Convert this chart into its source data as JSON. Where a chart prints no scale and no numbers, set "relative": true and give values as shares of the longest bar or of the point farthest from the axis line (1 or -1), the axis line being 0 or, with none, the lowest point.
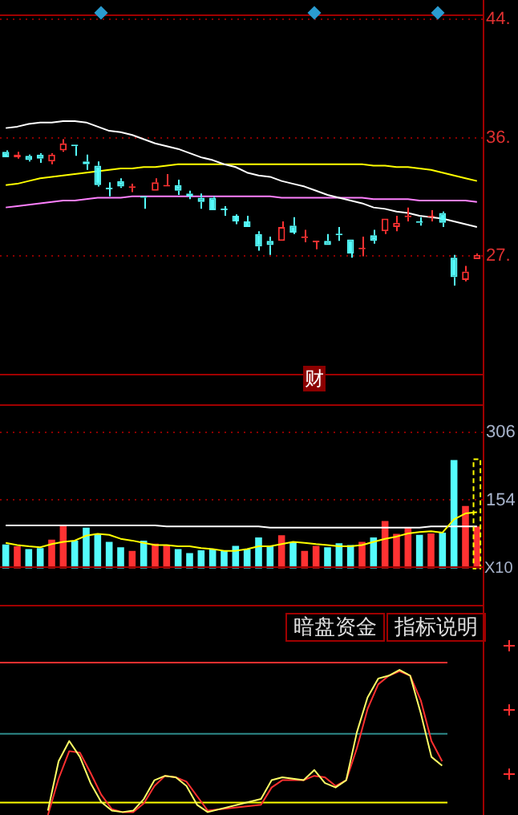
{
  "chart_data": [
    {
      "type": "candlestick",
      "categories": [
        null,
        null,
        null,
        null,
        null,
        null,
        null,
        null,
        null,
        null,
        null,
        null,
        null,
        null,
        null,
        null,
        null,
        null,
        null,
        null,
        null,
        null,
        null,
        null,
        null,
        null,
        null,
        null,
        null,
        null,
        null,
        null,
        null,
        null,
        null,
        null,
        null,
        null,
        null,
        null,
        null,
        null
      ],
      "ohlc": [
        [
          35.0,
          35.1,
          34.6,
          34.6
        ],
        [
          34.6,
          35.0,
          34.5,
          34.8
        ],
        [
          34.7,
          34.8,
          34.3,
          34.4
        ],
        [
          34.8,
          34.9,
          34.2,
          34.5
        ],
        [
          34.3,
          34.9,
          34.1,
          34.8
        ],
        [
          35.1,
          35.9,
          35.0,
          35.6
        ],
        [
          35.5,
          35.5,
          34.7,
          35.4
        ],
        [
          34.3,
          34.8,
          33.7,
          34.1
        ],
        [
          34.0,
          34.3,
          32.5,
          32.6
        ],
        [
          32.4,
          32.8,
          31.8,
          32.3
        ],
        [
          32.9,
          33.1,
          32.4,
          32.5
        ],
        [
          32.4,
          32.7,
          32.1,
          32.5
        ],
        [
          31.8,
          31.8,
          30.9,
          31.7
        ],
        [
          32.2,
          33.1,
          32.2,
          32.8
        ],
        [
          32.5,
          33.4,
          32.5,
          32.6
        ],
        [
          32.6,
          33.0,
          31.9,
          32.2
        ],
        [
          32.0,
          32.2,
          31.6,
          31.8
        ],
        [
          31.7,
          32.0,
          30.9,
          31.4
        ],
        [
          31.7,
          31.8,
          30.8,
          30.8
        ],
        [
          30.9,
          31.1,
          30.4,
          30.8
        ],
        [
          30.4,
          30.5,
          29.8,
          30.0
        ],
        [
          30.0,
          30.4,
          29.6,
          29.6
        ],
        [
          29.1,
          29.3,
          27.9,
          28.2
        ],
        [
          28.6,
          28.9,
          27.6,
          28.3
        ],
        [
          28.6,
          30.0,
          28.6,
          29.6
        ],
        [
          29.7,
          30.3,
          29.1,
          29.2
        ],
        [
          28.8,
          29.4,
          28.5,
          28.9
        ],
        [
          28.5,
          28.6,
          28.0,
          28.6
        ],
        [
          28.6,
          29.1,
          28.3,
          28.3
        ],
        [
          29.1,
          29.6,
          28.6,
          29.0
        ],
        [
          28.7,
          28.7,
          27.4,
          27.7
        ],
        [
          28.0,
          28.9,
          27.5,
          28.1
        ],
        [
          29.0,
          29.4,
          28.4,
          28.6
        ],
        [
          29.3,
          30.2,
          29.1,
          30.2
        ],
        [
          29.6,
          30.4,
          29.3,
          29.9
        ],
        [
          30.3,
          31.0,
          30.0,
          30.4
        ],
        [
          30.0,
          30.3,
          29.7,
          29.9
        ],
        [
          30.3,
          30.8,
          30.0,
          30.4
        ],
        [
          30.6,
          30.7,
          29.6,
          29.9
        ],
        [
          27.4,
          27.6,
          25.4,
          26.0
        ],
        [
          25.8,
          26.8,
          25.7,
          26.4
        ],
        [
          27.3,
          27.7,
          27.3,
          27.6
        ]
      ],
      "colors": [
        "#54fcfc",
        "#ff3232",
        "#54fcfc",
        "#54fcfc",
        "#ff3232",
        "#ff3232",
        "#54fcfc",
        "#54fcfc",
        "#54fcfc",
        "#54fcfc",
        "#54fcfc",
        "#ff3232",
        "#54fcfc",
        "#ff3232",
        "#ff3232",
        "#54fcfc",
        "#54fcfc",
        "#54fcfc",
        "#54fcfc",
        "#54fcfc",
        "#54fcfc",
        "#54fcfc",
        "#54fcfc",
        "#54fcfc",
        "#ff3232",
        "#54fcfc",
        "#ff3232",
        "#ff3232",
        "#54fcfc",
        "#54fcfc",
        "#54fcfc",
        "#ff3232",
        "#54fcfc",
        "#ff3232",
        "#ff3232",
        "#ff3232",
        "#54fcfc",
        "#ff3232",
        "#54fcfc",
        "#54fcfc",
        "#ff3232",
        "#ff3232"
      ],
      "series": [
        {
          "type": "line",
          "color": "#ffffff",
          "values": [
            36.7,
            36.8,
            37.0,
            37.1,
            37.1,
            37.2,
            37.2,
            37.1,
            36.8,
            36.5,
            36.4,
            36.2,
            35.9,
            35.6,
            35.4,
            35.2,
            34.9,
            34.6,
            34.4,
            34.1,
            33.9,
            33.5,
            33.3,
            33.2,
            32.9,
            32.7,
            32.5,
            32.2,
            31.9,
            31.7,
            31.5,
            31.3,
            31.0,
            30.9,
            30.7,
            30.6,
            30.4,
            30.3,
            30.2,
            30.0,
            29.8,
            29.6
          ]
        },
        {
          "type": "line",
          "color": "#ffff00",
          "values": [
            32.6,
            32.7,
            32.9,
            33.1,
            33.2,
            33.3,
            33.4,
            33.5,
            33.6,
            33.7,
            33.8,
            33.8,
            33.9,
            33.9,
            34.0,
            34.1,
            34.1,
            34.1,
            34.1,
            34.1,
            34.1,
            34.1,
            34.1,
            34.1,
            34.1,
            34.1,
            34.1,
            34.1,
            34.1,
            34.1,
            34.1,
            34.1,
            34.0,
            34.0,
            33.9,
            33.9,
            33.8,
            33.7,
            33.5,
            33.3,
            33.1,
            32.9
          ]
        },
        {
          "type": "line",
          "color": "#ff80ff",
          "values": [
            31.0,
            31.1,
            31.2,
            31.3,
            31.4,
            31.5,
            31.5,
            31.6,
            31.7,
            31.7,
            31.7,
            31.8,
            31.8,
            31.8,
            31.8,
            31.8,
            31.8,
            31.8,
            31.8,
            31.8,
            31.8,
            31.8,
            31.8,
            31.8,
            31.7,
            31.7,
            31.7,
            31.7,
            31.7,
            31.7,
            31.7,
            31.7,
            31.6,
            31.6,
            31.6,
            31.6,
            31.5,
            31.5,
            31.5,
            31.5,
            31.5,
            31.4
          ]
        }
      ],
      "ylim": [
        18.9,
        44.9
      ],
      "yticks": [
        {
          "value": 44.5,
          "label": "44."
        },
        {
          "value": 36.0,
          "label": "36."
        },
        {
          "value": 27.5,
          "label": "27."
        }
      ],
      "grid": "y",
      "tick_labels": "y",
      "annotations": [
        "财"
      ]
    },
    {
      "type": "bar",
      "categories": [
        null,
        null,
        null,
        null,
        null,
        null,
        null,
        null,
        null,
        null,
        null,
        null,
        null,
        null,
        null,
        null,
        null,
        null,
        null,
        null,
        null,
        null,
        null,
        null,
        null,
        null,
        null,
        null,
        null,
        null,
        null,
        null,
        null,
        null,
        null,
        null,
        null,
        null,
        null,
        null,
        null,
        null
      ],
      "series": [
        {
          "type": "bar",
          "colors": [
            "#54fcfc",
            "#ff3232",
            "#54fcfc",
            "#54fcfc",
            "#ff3232",
            "#ff3232",
            "#54fcfc",
            "#54fcfc",
            "#54fcfc",
            "#54fcfc",
            "#54fcfc",
            "#ff3232",
            "#54fcfc",
            "#ff3232",
            "#ff3232",
            "#54fcfc",
            "#54fcfc",
            "#54fcfc",
            "#54fcfc",
            "#54fcfc",
            "#54fcfc",
            "#54fcfc",
            "#54fcfc",
            "#54fcfc",
            "#ff3232",
            "#54fcfc",
            "#ff3232",
            "#ff3232",
            "#54fcfc",
            "#54fcfc",
            "#54fcfc",
            "#ff3232",
            "#54fcfc",
            "#ff3232",
            "#ff3232",
            "#ff3232",
            "#54fcfc",
            "#ff3232",
            "#54fcfc",
            "#54fcfc",
            "#ff3232",
            "#ff3232"
          ],
          "values": [
            54,
            50,
            44,
            46,
            65,
            96,
            63,
            92,
            77,
            60,
            48,
            40,
            63,
            56,
            53,
            44,
            35,
            41,
            43,
            40,
            51,
            44,
            70,
            50,
            75,
            59,
            40,
            51,
            48,
            57,
            53,
            60,
            70,
            107,
            78,
            91,
            76,
            79,
            81,
            244,
            141,
            95
          ]
        },
        {
          "type": "bar",
          "color": "#ffff00",
          "line_style": "dashed",
          "values": [
            null,
            null,
            null,
            null,
            null,
            null,
            null,
            null,
            null,
            null,
            null,
            null,
            null,
            null,
            null,
            null,
            null,
            null,
            null,
            null,
            null,
            null,
            null,
            null,
            null,
            null,
            null,
            null,
            null,
            null,
            null,
            null,
            null,
            null,
            null,
            null,
            null,
            null,
            null,
            null,
            null,
            246
          ]
        },
        {
          "type": "line",
          "color": "#ffff00",
          "values": [
            58,
            53,
            50,
            48,
            55,
            60,
            63,
            74,
            78,
            76,
            67,
            63,
            58,
            53,
            53,
            50,
            50,
            46,
            44,
            40,
            40,
            44,
            50,
            50,
            55,
            60,
            58,
            55,
            53,
            50,
            50,
            53,
            60,
            67,
            72,
            79,
            82,
            84,
            81,
            111,
            124,
            127
          ]
        },
        {
          "type": "line",
          "color": "#ffffff",
          "values": [
            97,
            97,
            97,
            97,
            97,
            97,
            97,
            97,
            97,
            97,
            97,
            97,
            97,
            97,
            95,
            95,
            95,
            95,
            95,
            95,
            95,
            95,
            95,
            92,
            92,
            92,
            92,
            92,
            92,
            92,
            92,
            92,
            92,
            92,
            92,
            92,
            92,
            95,
            95,
            95,
            95,
            95
          ]
        }
      ],
      "ylim": [
        0,
        371
      ],
      "yticks": [
        306,
        154
      ],
      "grid": "y",
      "tick_labels": "y",
      "annotations": [
        "X10"
      ]
    },
    {
      "type": "line",
      "relative": true,
      "categories": [
        null,
        null,
        null,
        null,
        null,
        null,
        null,
        null,
        null,
        null,
        null,
        null,
        null,
        null,
        null,
        null,
        null,
        null,
        null,
        null,
        null,
        null,
        null,
        null,
        null,
        null,
        null,
        null,
        null,
        null,
        null,
        null,
        null,
        null,
        null,
        null,
        null,
        null,
        null,
        null,
        null,
        null
      ],
      "series": [
        {
          "color": "#ffff66",
          "values": [
            null,
            null,
            null,
            null,
            0.03,
            0.37,
            0.51,
            0.4,
            0.22,
            0.09,
            0.03,
            0.02,
            0.03,
            0.11,
            0.24,
            0.27,
            0.26,
            0.2,
            0.07,
            0.02,
            null,
            null,
            null,
            null,
            0.11,
            0.24,
            0.26,
            0.25,
            0.24,
            0.31,
            0.22,
            0.19,
            0.24,
            0.57,
            0.81,
            0.94,
            0.96,
            1,
            0.96,
            0.7,
            0.4,
            0.34
          ]
        },
        {
          "color": "#ff3030",
          "values": [
            null,
            null,
            null,
            null,
            0,
            0.25,
            0.44,
            0.43,
            0.29,
            0.14,
            0.04,
            0.02,
            0.02,
            0.08,
            0.2,
            0.27,
            0.26,
            0.23,
            0.13,
            0.03,
            null,
            null,
            null,
            null,
            0.07,
            0.19,
            0.24,
            0.24,
            0.24,
            0.27,
            0.26,
            0.2,
            0.24,
            0.46,
            0.73,
            0.9,
            0.96,
            0.99,
            0.96,
            0.79,
            0.51,
            0.37
          ]
        }
      ],
      "ref_lines": [
        {
          "axis": "y",
          "value": 1.05,
          "color": "#ff3030"
        },
        {
          "axis": "y",
          "value": 0.56,
          "color": "#2e8b8b"
        },
        {
          "axis": "y",
          "value": 0.085,
          "color": "#ffff00"
        }
      ],
      "tick_labels": false,
      "annotations": [
        "暗盘资金",
        "指标说明"
      ]
    }
  ]
}
